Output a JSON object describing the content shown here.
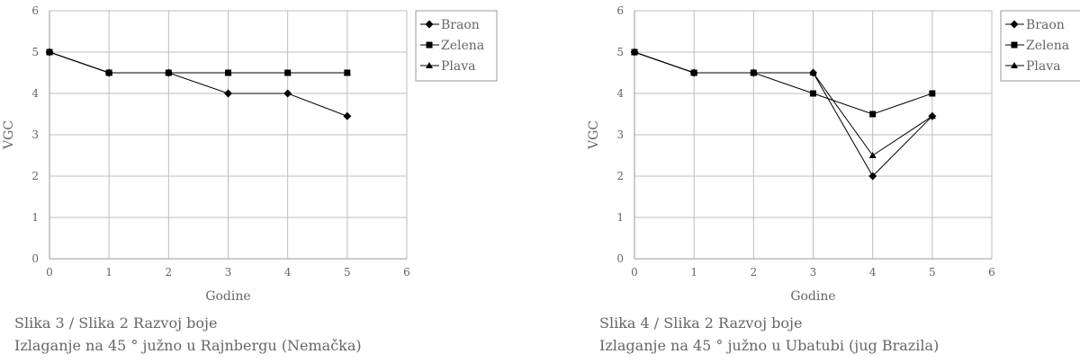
{
  "chart_data": [
    {
      "type": "line",
      "title": "",
      "xlabel": "Godine",
      "ylabel": "VGC",
      "xlim": [
        0,
        6
      ],
      "ylim": [
        0,
        6
      ],
      "xticks": [
        "0",
        "1",
        "2",
        "3",
        "4",
        "5",
        "6"
      ],
      "yticks": [
        "0",
        "1",
        "2",
        "3",
        "4",
        "5",
        "6"
      ],
      "grid": true,
      "legend_position": "top-right",
      "x": [
        0,
        1,
        2,
        3,
        4,
        5
      ],
      "series": [
        {
          "name": "Braon",
          "marker": "diamond",
          "values": [
            5,
            4.5,
            4.5,
            4,
            4,
            3.45
          ]
        },
        {
          "name": "Zelena",
          "marker": "square",
          "values": [
            5,
            4.5,
            4.5,
            4.5,
            4.5,
            4.5
          ]
        },
        {
          "name": "Plava",
          "marker": "triangle",
          "values": [
            5,
            4.5,
            4.5,
            4.5,
            4.5,
            4.5
          ]
        }
      ],
      "caption": [
        "Slika 3 / Slika 2 Razvoj boje",
        "Izlaganje na 45 ° južno u Rajnbergu (Nemačka)"
      ]
    },
    {
      "type": "line",
      "title": "",
      "xlabel": "Godine",
      "ylabel": "VGC",
      "xlim": [
        0,
        6
      ],
      "ylim": [
        0,
        6
      ],
      "xticks": [
        "0",
        "1",
        "2",
        "3",
        "4",
        "5",
        "6"
      ],
      "yticks": [
        "0",
        "1",
        "2",
        "3",
        "4",
        "5",
        "6"
      ],
      "grid": true,
      "legend_position": "top-right",
      "x": [
        0,
        1,
        2,
        3,
        4,
        5
      ],
      "series": [
        {
          "name": "Braon",
          "marker": "diamond",
          "values": [
            5,
            4.5,
            4.5,
            4.5,
            2,
            3.45
          ]
        },
        {
          "name": "Zelena",
          "marker": "square",
          "values": [
            5,
            4.5,
            4.5,
            4,
            3.5,
            4
          ]
        },
        {
          "name": "Plava",
          "marker": "triangle",
          "values": [
            5,
            4.5,
            4.5,
            4.5,
            2.5,
            3.45
          ]
        }
      ],
      "caption": [
        "Slika 4  / Slika 2 Razvoj boje",
        "Izlaganje na 45 ° južno u Ubatubi (jug Brazila)"
      ]
    }
  ]
}
